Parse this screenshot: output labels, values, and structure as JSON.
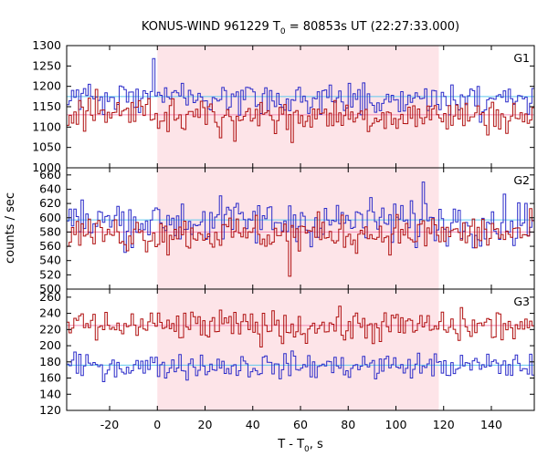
{
  "chart_data": {
    "type": "line",
    "title_parts": {
      "prefix": "KONUS-WIND 961229 T",
      "sub": "0",
      "suffix": " = 80853s UT (22:27:33.000)"
    },
    "xlabel_parts": {
      "prefix": "T - T",
      "sub": "0",
      "suffix": ", s"
    },
    "ylabel": "counts / sec",
    "xlim": [
      -38,
      158
    ],
    "xticks": [
      -20,
      0,
      20,
      40,
      60,
      80,
      100,
      120,
      140
    ],
    "xtick_labels": [
      "-20",
      "0",
      "20",
      "40",
      "60",
      "80",
      "100",
      "120",
      "140"
    ],
    "shaded_interval": [
      0,
      118
    ],
    "colors": {
      "blue": "#2b2bc9",
      "red": "#b01010",
      "shade": "#fde4e8",
      "cyan_bg": "#5fc8ee",
      "pink_bg": "#f28ab4"
    },
    "panels": [
      {
        "name": "G1",
        "ylim": [
          1000,
          1300
        ],
        "yticks": [
          1000,
          1050,
          1100,
          1150,
          1200,
          1250,
          1300
        ],
        "ytick_labels": [
          "1000",
          "1050",
          "1100",
          "1150",
          "1200",
          "1250",
          "1300"
        ],
        "series": [
          {
            "color": "blue",
            "background": 1175,
            "mean": 1170,
            "amp": 22
          },
          {
            "color": "red",
            "background": 1130,
            "mean": 1128,
            "amp": 22
          }
        ]
      },
      {
        "name": "G2",
        "ylim": [
          500,
          670
        ],
        "yticks": [
          500,
          520,
          540,
          560,
          580,
          600,
          620,
          640,
          660
        ],
        "ytick_labels": [
          "500",
          "520",
          "540",
          "560",
          "580",
          "600",
          "620",
          "640",
          "660"
        ],
        "series": [
          {
            "color": "blue",
            "background": 597,
            "mean": 595,
            "amp": 16
          },
          {
            "color": "red",
            "background": 580,
            "mean": 578,
            "amp": 13
          }
        ]
      },
      {
        "name": "G3",
        "ylim": [
          120,
          270
        ],
        "yticks": [
          120,
          140,
          160,
          180,
          200,
          220,
          240,
          260
        ],
        "ytick_labels": [
          "120",
          "140",
          "160",
          "180",
          "200",
          "220",
          "240",
          "260"
        ],
        "series": [
          {
            "color": "red",
            "background": 225,
            "mean": 224,
            "amp": 10
          },
          {
            "color": "blue",
            "background": 176,
            "mean": 175,
            "amp": 8
          }
        ]
      }
    ]
  }
}
